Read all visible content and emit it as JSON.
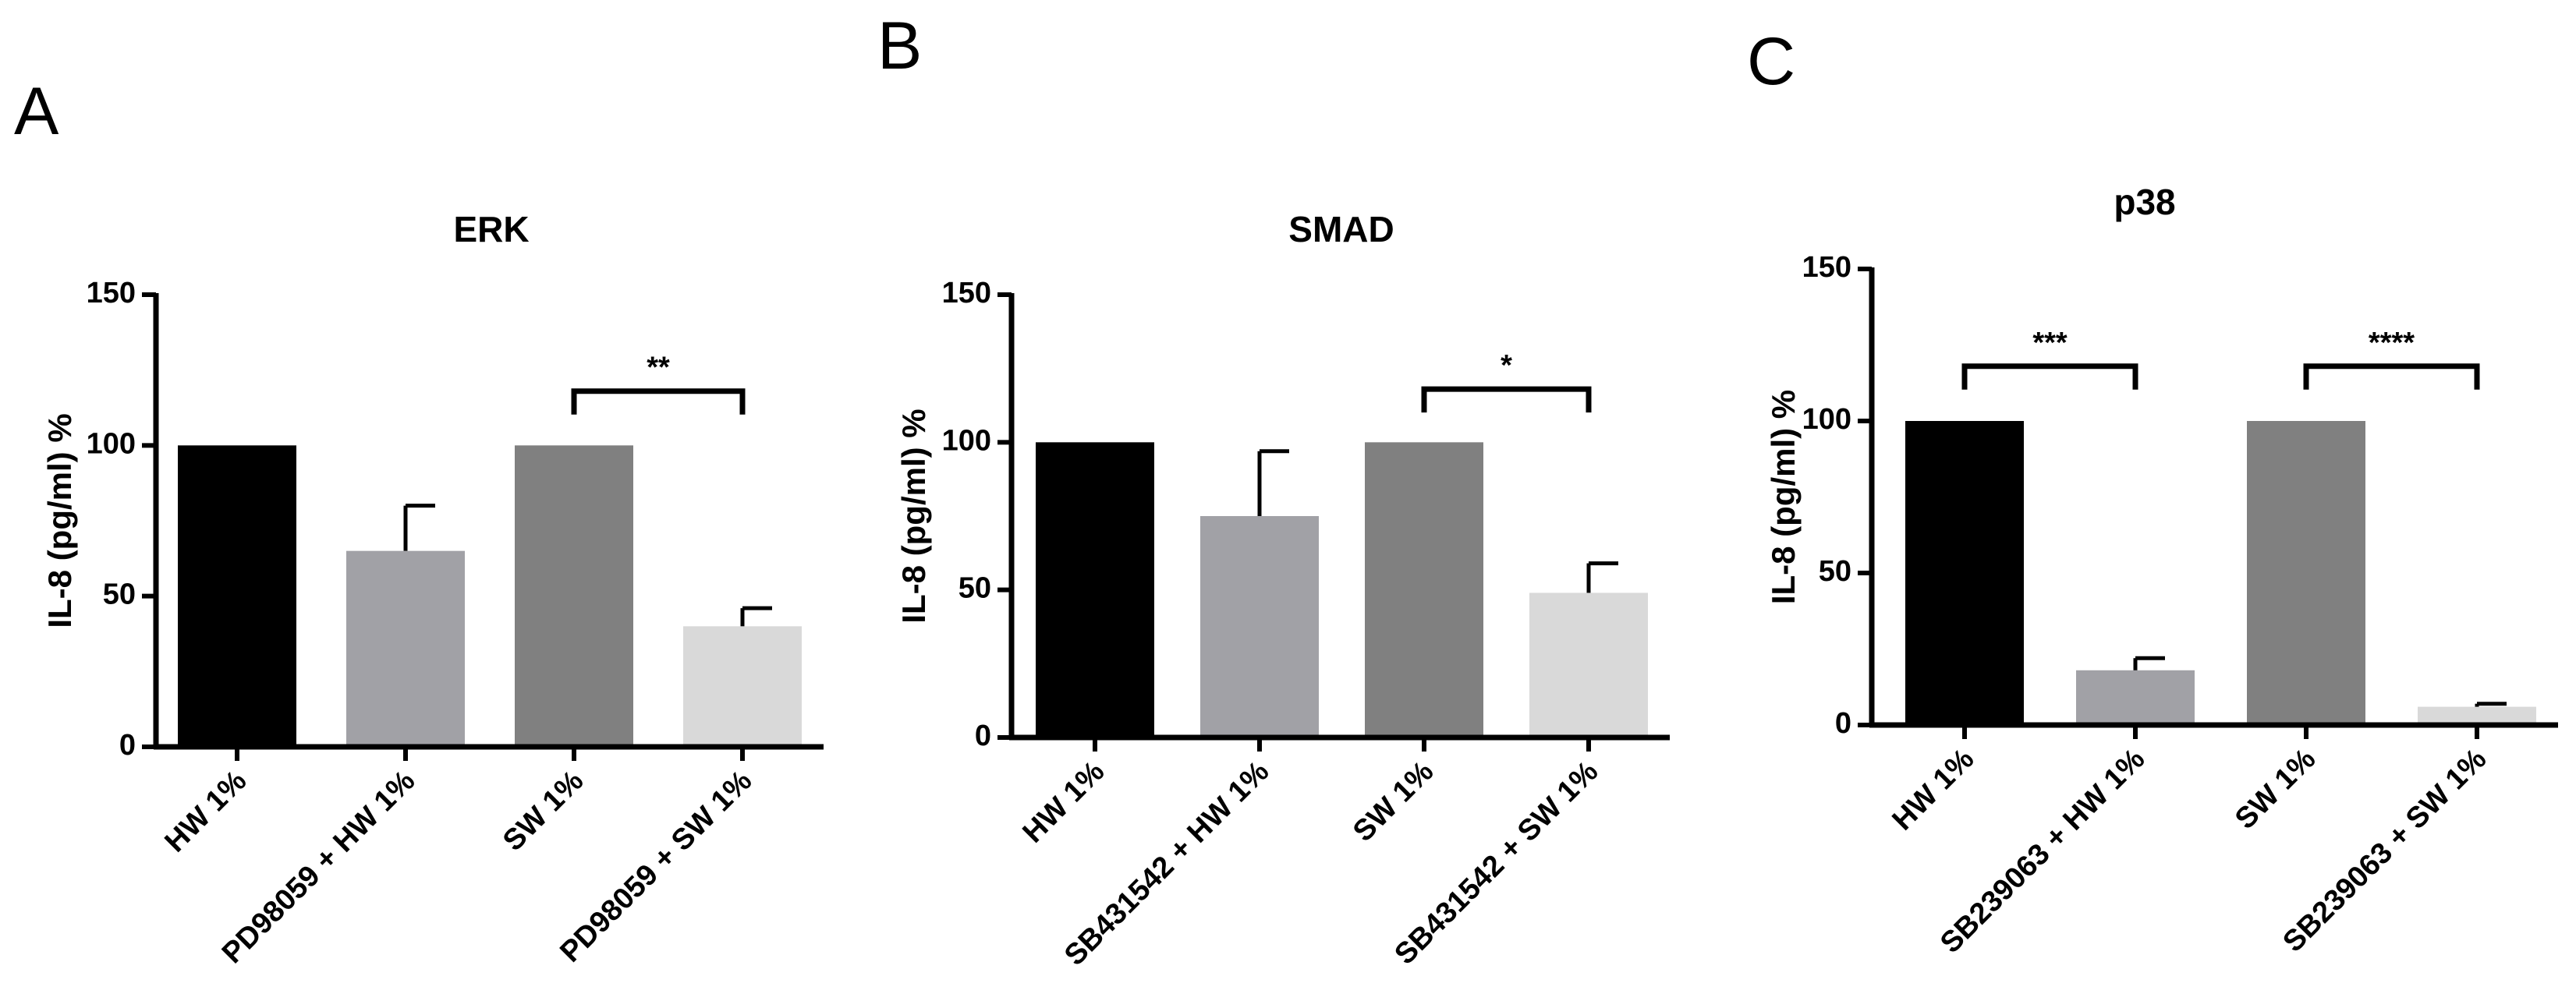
{
  "chart_data": [
    {
      "panel": "A",
      "type": "bar",
      "title": "ERK",
      "ylabel": "IL-8 (pg/ml) %",
      "xlabel": "",
      "ylim": [
        0,
        150
      ],
      "yticks": [
        0,
        50,
        100,
        150
      ],
      "categories": [
        "HW 1%",
        "PD98059 + HW 1%",
        "SW 1%",
        "PD98059 + SW 1%"
      ],
      "values": [
        100,
        65,
        100,
        40
      ],
      "errors": [
        0,
        15,
        0,
        6
      ],
      "colors": [
        "#000000",
        "#a1a1a6",
        "#808080",
        "#d9d9d9"
      ],
      "significance": [
        {
          "from": 2,
          "to": 3,
          "label": "**",
          "y": 118
        }
      ]
    },
    {
      "panel": "B",
      "type": "bar",
      "title": "SMAD",
      "ylabel": "IL-8 (pg/ml) %",
      "xlabel": "",
      "ylim": [
        0,
        150
      ],
      "yticks": [
        0,
        50,
        100,
        150
      ],
      "categories": [
        "HW 1%",
        "SB431542 + HW 1%",
        "SW 1%",
        "SB431542 + SW 1%"
      ],
      "values": [
        100,
        75,
        100,
        49
      ],
      "errors": [
        0,
        22,
        0,
        10
      ],
      "colors": [
        "#000000",
        "#a1a1a6",
        "#808080",
        "#d9d9d9"
      ],
      "significance": [
        {
          "from": 2,
          "to": 3,
          "label": "*",
          "y": 118
        }
      ]
    },
    {
      "panel": "C",
      "type": "bar",
      "title": "p38",
      "ylabel": "IL-8 (pg/ml) %",
      "xlabel": "",
      "ylim": [
        0,
        150
      ],
      "yticks": [
        0,
        50,
        100,
        150
      ],
      "categories": [
        "HW 1%",
        "SB239063 + HW 1%",
        "SW 1%",
        "SB239063 + SW 1%"
      ],
      "values": [
        100,
        18,
        100,
        6
      ],
      "errors": [
        0,
        4,
        0,
        1
      ],
      "colors": [
        "#000000",
        "#a1a1a6",
        "#808080",
        "#d9d9d9"
      ],
      "significance": [
        {
          "from": 0,
          "to": 1,
          "label": "***",
          "y": 118
        },
        {
          "from": 2,
          "to": 3,
          "label": "****",
          "y": 118
        }
      ]
    }
  ]
}
